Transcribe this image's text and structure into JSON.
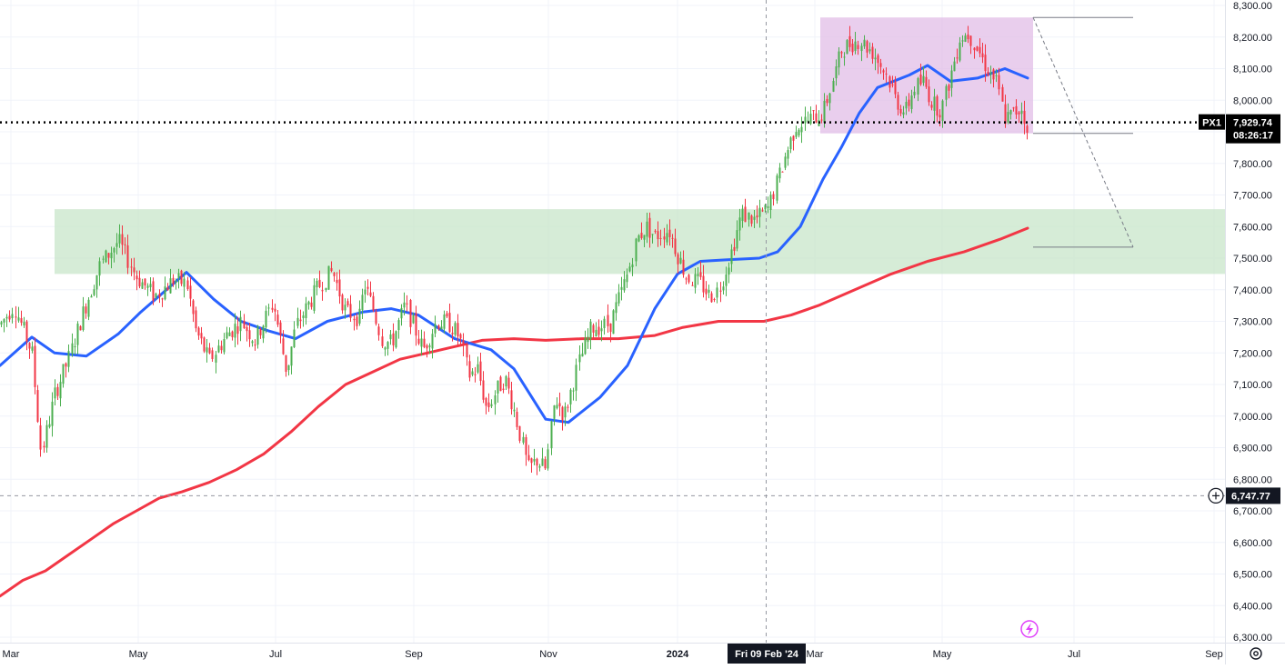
{
  "chart_data": {
    "type": "candlestick",
    "symbol": "PX1",
    "last_price": "7,929.74",
    "countdown": "08:26:17",
    "crosshair_price": "6,747.77",
    "crosshair_date": "Fri 09 Feb '24",
    "ylim": [
      6300,
      8300
    ],
    "y_ticks": [
      "8,300.00",
      "8,200.00",
      "8,100.00",
      "8,000.00",
      "7,900.00",
      "7,800.00",
      "7,700.00",
      "7,600.00",
      "7,500.00",
      "7,400.00",
      "7,300.00",
      "7,200.00",
      "7,100.00",
      "7,000.00",
      "6,900.00",
      "6,800.00",
      "6,700.00",
      "6,600.00",
      "6,500.00",
      "6,400.00",
      "6,300.00"
    ],
    "x_ticks": [
      "Mar",
      "May",
      "Jul",
      "Sep",
      "Nov",
      "2024",
      "Mar",
      "May",
      "Jul",
      "Sep"
    ],
    "zones": [
      {
        "name": "support-zone",
        "low": 7450,
        "high": 7655,
        "color": "#c8e6c9"
      },
      {
        "name": "range-box",
        "low": 7895,
        "high": 8262,
        "color": "#e1bee7"
      }
    ],
    "measure_levels": [
      8262,
      7895,
      7535
    ],
    "ma_fast_color": "#2962ff",
    "ma_slow_color": "#f23645",
    "up_color": "#4caf50",
    "down_color": "#f23645",
    "ma_fast_points": [
      [
        0,
        7160
      ],
      [
        35,
        7250
      ],
      [
        60,
        7200
      ],
      [
        95,
        7190
      ],
      [
        130,
        7260
      ],
      [
        155,
        7330
      ],
      [
        205,
        7455
      ],
      [
        235,
        7370
      ],
      [
        265,
        7300
      ],
      [
        295,
        7270
      ],
      [
        325,
        7245
      ],
      [
        360,
        7300
      ],
      [
        400,
        7330
      ],
      [
        430,
        7340
      ],
      [
        460,
        7320
      ],
      [
        500,
        7245
      ],
      [
        540,
        7210
      ],
      [
        565,
        7150
      ],
      [
        600,
        6990
      ],
      [
        625,
        6980
      ],
      [
        660,
        7060
      ],
      [
        690,
        7160
      ],
      [
        720,
        7340
      ],
      [
        745,
        7450
      ],
      [
        770,
        7490
      ],
      [
        800,
        7495
      ],
      [
        835,
        7500
      ],
      [
        855,
        7520
      ],
      [
        880,
        7600
      ],
      [
        905,
        7750
      ],
      [
        925,
        7850
      ],
      [
        945,
        7960
      ],
      [
        965,
        8040
      ],
      [
        1000,
        8080
      ],
      [
        1020,
        8110
      ],
      [
        1045,
        8060
      ],
      [
        1075,
        8070
      ],
      [
        1105,
        8100
      ],
      [
        1130,
        8070
      ]
    ],
    "ma_slow_points": [
      [
        0,
        6430
      ],
      [
        25,
        6480
      ],
      [
        50,
        6510
      ],
      [
        75,
        6560
      ],
      [
        100,
        6610
      ],
      [
        125,
        6660
      ],
      [
        150,
        6700
      ],
      [
        175,
        6740
      ],
      [
        200,
        6760
      ],
      [
        230,
        6790
      ],
      [
        260,
        6830
      ],
      [
        290,
        6880
      ],
      [
        320,
        6950
      ],
      [
        350,
        7030
      ],
      [
        380,
        7100
      ],
      [
        410,
        7140
      ],
      [
        440,
        7180
      ],
      [
        470,
        7200
      ],
      [
        500,
        7220
      ],
      [
        530,
        7240
      ],
      [
        565,
        7245
      ],
      [
        600,
        7240
      ],
      [
        640,
        7245
      ],
      [
        680,
        7245
      ],
      [
        720,
        7255
      ],
      [
        750,
        7280
      ],
      [
        790,
        7300
      ],
      [
        840,
        7300
      ],
      [
        870,
        7320
      ],
      [
        900,
        7350
      ],
      [
        940,
        7400
      ],
      [
        980,
        7450
      ],
      [
        1020,
        7490
      ],
      [
        1060,
        7520
      ],
      [
        1100,
        7560
      ],
      [
        1130,
        7595
      ]
    ],
    "candle_path": [
      [
        0,
        7290
      ],
      [
        15,
        7350
      ],
      [
        35,
        7200
      ],
      [
        45,
        6880
      ],
      [
        60,
        7070
      ],
      [
        75,
        7180
      ],
      [
        90,
        7320
      ],
      [
        110,
        7480
      ],
      [
        130,
        7555
      ],
      [
        150,
        7440
      ],
      [
        170,
        7380
      ],
      [
        190,
        7430
      ],
      [
        205,
        7420
      ],
      [
        215,
        7270
      ],
      [
        230,
        7175
      ],
      [
        250,
        7260
      ],
      [
        265,
        7300
      ],
      [
        280,
        7240
      ],
      [
        300,
        7360
      ],
      [
        315,
        7140
      ],
      [
        325,
        7285
      ],
      [
        340,
        7360
      ],
      [
        350,
        7410
      ],
      [
        365,
        7460
      ],
      [
        380,
        7330
      ],
      [
        395,
        7310
      ],
      [
        400,
        7420
      ],
      [
        410,
        7340
      ],
      [
        420,
        7240
      ],
      [
        430,
        7230
      ],
      [
        445,
        7350
      ],
      [
        455,
        7280
      ],
      [
        465,
        7210
      ],
      [
        480,
        7300
      ],
      [
        495,
        7290
      ],
      [
        505,
        7250
      ],
      [
        515,
        7130
      ],
      [
        525,
        7150
      ],
      [
        535,
        7020
      ],
      [
        545,
        7080
      ],
      [
        555,
        7120
      ],
      [
        565,
        7020
      ],
      [
        575,
        6900
      ],
      [
        580,
        6830
      ],
      [
        590,
        6860
      ],
      [
        600,
        6830
      ],
      [
        610,
        7060
      ],
      [
        620,
        7000
      ],
      [
        635,
        7160
      ],
      [
        650,
        7280
      ],
      [
        670,
        7290
      ],
      [
        690,
        7450
      ],
      [
        700,
        7560
      ],
      [
        710,
        7600
      ],
      [
        720,
        7570
      ],
      [
        735,
        7590
      ],
      [
        745,
        7510
      ],
      [
        755,
        7440
      ],
      [
        770,
        7420
      ],
      [
        780,
        7380
      ],
      [
        790,
        7400
      ],
      [
        805,
        7530
      ],
      [
        815,
        7640
      ],
      [
        830,
        7620
      ],
      [
        845,
        7660
      ],
      [
        855,
        7750
      ],
      [
        865,
        7840
      ],
      [
        875,
        7920
      ],
      [
        890,
        7940
      ],
      [
        905,
        7960
      ],
      [
        915,
        8060
      ],
      [
        925,
        8160
      ],
      [
        935,
        8180
      ],
      [
        945,
        8190
      ],
      [
        960,
        8150
      ],
      [
        975,
        8080
      ],
      [
        985,
        8000
      ],
      [
        995,
        7960
      ],
      [
        1005,
        8040
      ],
      [
        1015,
        8060
      ],
      [
        1025,
        7990
      ],
      [
        1035,
        7970
      ],
      [
        1045,
        8080
      ],
      [
        1055,
        8200
      ],
      [
        1065,
        8210
      ],
      [
        1075,
        8160
      ],
      [
        1085,
        8100
      ],
      [
        1095,
        8060
      ],
      [
        1105,
        7940
      ],
      [
        1115,
        7960
      ],
      [
        1125,
        7980
      ],
      [
        1132,
        7820
      ]
    ]
  }
}
